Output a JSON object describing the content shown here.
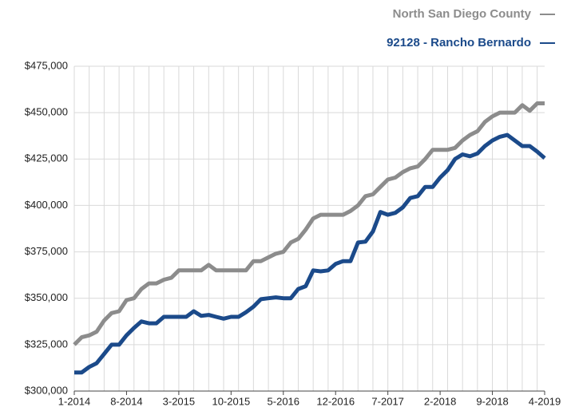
{
  "chart_data": {
    "type": "line",
    "categories": [
      "1-2014",
      null,
      null,
      null,
      null,
      null,
      null,
      "8-2014",
      null,
      null,
      null,
      null,
      null,
      null,
      "3-2015",
      null,
      null,
      null,
      null,
      null,
      null,
      "10-2015",
      null,
      null,
      null,
      null,
      null,
      null,
      "5-2016",
      null,
      null,
      null,
      null,
      null,
      null,
      "12-2016",
      null,
      null,
      null,
      null,
      null,
      null,
      "7-2017",
      null,
      null,
      null,
      null,
      null,
      null,
      "2-2018",
      null,
      null,
      null,
      null,
      null,
      null,
      "9-2018",
      null,
      null,
      null,
      null,
      null,
      null,
      "4-2019"
    ],
    "series": [
      {
        "name": "North San Diego County",
        "color": "#8c8c8c",
        "values": [
          325000,
          329000,
          330000,
          332000,
          338000,
          342000,
          343000,
          349000,
          350000,
          355000,
          358000,
          358000,
          360000,
          361000,
          365000,
          365000,
          365000,
          365000,
          368000,
          365000,
          365000,
          365000,
          365000,
          365000,
          370000,
          370000,
          372000,
          374000,
          375000,
          380000,
          382000,
          387000,
          393000,
          395000,
          395000,
          395000,
          395000,
          397000,
          400000,
          405000,
          406000,
          410000,
          414000,
          415000,
          418000,
          420000,
          421000,
          425000,
          430000,
          430000,
          430000,
          431000,
          435000,
          438000,
          440000,
          445000,
          448000,
          450000,
          450000,
          450000,
          454000,
          451000,
          455000,
          455000
        ]
      },
      {
        "name": "92128 - Rancho Bernardo",
        "color": "#1b4a8a",
        "values": [
          310000,
          310000,
          313000,
          315000,
          320000,
          325000,
          325000,
          330000,
          334000,
          337500,
          336500,
          336500,
          340000,
          340000,
          340000,
          340000,
          343000,
          340500,
          341000,
          340000,
          339000,
          340000,
          340000,
          342500,
          345500,
          349500,
          350000,
          350500,
          350000,
          350000,
          355000,
          356500,
          365000,
          364500,
          365000,
          368500,
          370000,
          370000,
          380000,
          380500,
          386000,
          396500,
          395000,
          396000,
          399000,
          404000,
          405000,
          410000,
          410000,
          415000,
          419000,
          425000,
          427500,
          426500,
          428000,
          432000,
          435000,
          437000,
          438000,
          435000,
          432000,
          432000,
          429000,
          425500
        ]
      }
    ],
    "ylim": [
      300000,
      475000
    ],
    "yticks": [
      {
        "value": 300000,
        "label": "$300,000"
      },
      {
        "value": 325000,
        "label": "$325,000"
      },
      {
        "value": 350000,
        "label": "$350,000"
      },
      {
        "value": 375000,
        "label": "$375,000"
      },
      {
        "value": 400000,
        "label": "$400,000"
      },
      {
        "value": 425000,
        "label": "$425,000"
      },
      {
        "value": 450000,
        "label": "$450,000"
      },
      {
        "value": 475000,
        "label": "$475,000"
      }
    ],
    "grid": true,
    "legend": "top-right"
  }
}
